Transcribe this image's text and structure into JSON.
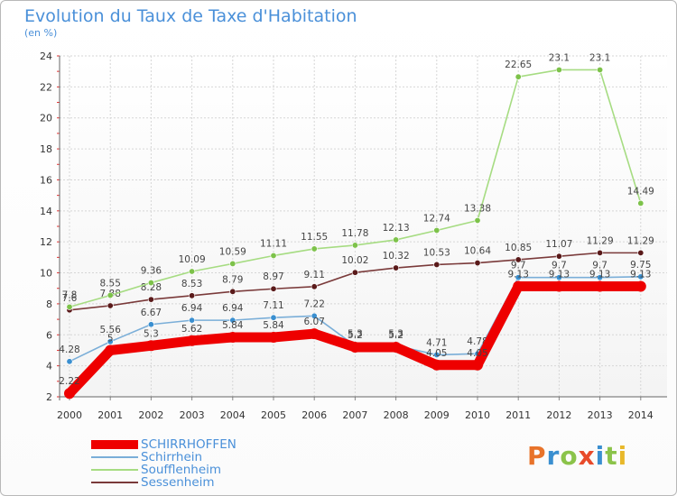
{
  "header": {
    "title": "Evolution du Taux de Taxe d'Habitation",
    "unit": "(en %)"
  },
  "logo": {
    "text": "Proxiti",
    "colors": [
      "#e8732a",
      "#3a8fd0",
      "#8bc34a",
      "#e84a2a",
      "#3a8fd0",
      "#8bc34a",
      "#e8b82a"
    ]
  },
  "chart_data": {
    "type": "line",
    "title": "Evolution du Taux de Taxe d'Habitation",
    "ylabel": "(en %)",
    "xlabel": "",
    "x": [
      "2000",
      "2001",
      "2002",
      "2003",
      "2004",
      "2005",
      "2006",
      "2007",
      "2008",
      "2009",
      "2010",
      "2011",
      "2012",
      "2013",
      "2014"
    ],
    "ylim": [
      2,
      24
    ],
    "yticks": [
      "2",
      "4",
      "6",
      "8",
      "10",
      "12",
      "14",
      "16",
      "18",
      "20",
      "22",
      "24"
    ],
    "grid": true,
    "legend_position": "bottom-left",
    "series": [
      {
        "name": "SCHIRRHOFFEN",
        "color": "#ee0000",
        "marker": "#ee0000",
        "values": [
          2.22,
          5,
          5.3,
          5.62,
          5.84,
          5.84,
          6.07,
          5.2,
          5.2,
          4.05,
          4.05,
          9.13,
          9.13,
          9.13,
          9.13
        ],
        "labels": [
          "2.22",
          "5",
          "5.3",
          "5.62",
          "5.84",
          "5.84",
          "6.07",
          "5.2",
          "5.2",
          "4.05",
          "4.05",
          "9.13",
          "9.13",
          "9.13",
          "9.13"
        ]
      },
      {
        "name": "Schirrhein",
        "color": "#7aaed8",
        "marker": "#3a8fd0",
        "values": [
          4.28,
          5.56,
          6.67,
          6.94,
          6.94,
          7.11,
          7.22,
          5.3,
          5.3,
          4.71,
          4.78,
          9.7,
          9.7,
          9.7,
          9.75
        ],
        "labels": [
          "4.28",
          "5.56",
          "6.67",
          "6.94",
          "6.94",
          "7.11",
          "7.22",
          "5.3",
          "5.3",
          "4.71",
          "4.78",
          "9.7",
          "9.7",
          "9.7",
          "9.75"
        ]
      },
      {
        "name": "Soufflenheim",
        "color": "#a6dc82",
        "marker": "#7dc24a",
        "values": [
          7.8,
          8.55,
          9.36,
          10.09,
          10.59,
          11.11,
          11.55,
          11.78,
          12.13,
          12.74,
          13.38,
          22.65,
          23.1,
          23.1,
          14.49
        ],
        "labels": [
          "7.8",
          "8.55",
          "9.36",
          "10.09",
          "10.59",
          "11.11",
          "11.55",
          "11.78",
          "12.13",
          "12.74",
          "13.38",
          "22.65",
          "23.1",
          "23.1",
          "14.49"
        ]
      },
      {
        "name": "Sessenheim",
        "color": "#7a3a3a",
        "marker": "#5a1a1a",
        "values": [
          7.6,
          7.88,
          8.28,
          8.53,
          8.79,
          8.97,
          9.11,
          10.02,
          10.32,
          10.53,
          10.64,
          10.85,
          11.07,
          11.29,
          11.29
        ],
        "labels": [
          "7.6",
          "7.88",
          "8.28",
          "8.53",
          "8.79",
          "8.97",
          "9.11",
          "10.02",
          "10.32",
          "10.53",
          "10.64",
          "10.85",
          "11.07",
          "11.29",
          "11.29"
        ]
      }
    ]
  }
}
